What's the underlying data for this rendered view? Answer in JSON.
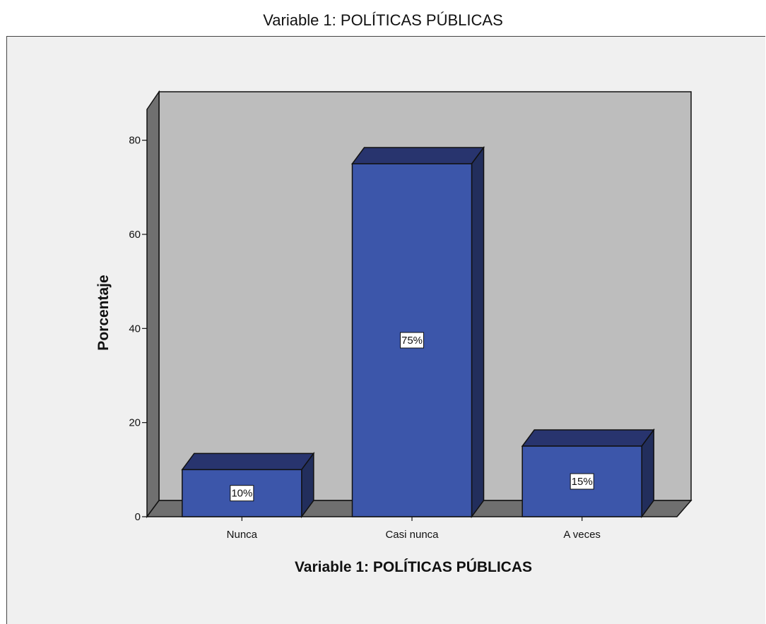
{
  "chart_data": {
    "type": "bar",
    "title": "Variable 1: POLÍTICAS PÚBLICAS",
    "xlabel": "Variable 1: POLÍTICAS PÚBLICAS",
    "ylabel": "Porcentaje",
    "categories": [
      "Nunca",
      "Casi nunca",
      "A veces"
    ],
    "values": [
      10,
      75,
      15
    ],
    "data_labels": [
      "10%",
      "75%",
      "15%"
    ],
    "ylim": [
      0,
      87
    ],
    "yticks": [
      0,
      20,
      40,
      60,
      80
    ],
    "grid": false,
    "legend": "none",
    "bar_style": "3d",
    "colors": {
      "bar_front": "#3c56aa",
      "bar_top": "#28346e",
      "bar_side": "#222e5c",
      "back_wall": "#bdbdbd",
      "side_wall": "#707070",
      "floor": "#6f6f6f",
      "frame_background": "#f0f0f0"
    }
  }
}
